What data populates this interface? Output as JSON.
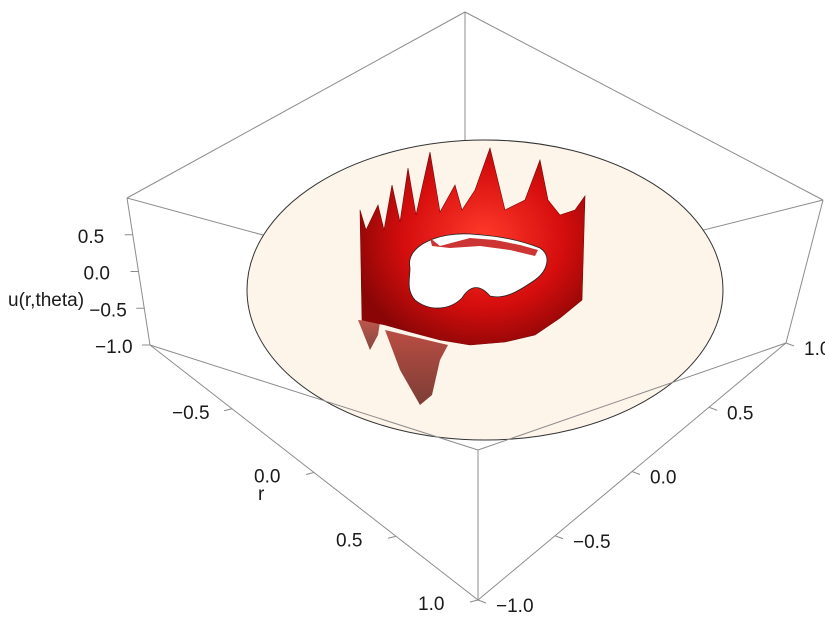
{
  "chart_data": {
    "type": "surface3d",
    "title": "",
    "axes": {
      "x": {
        "label": "r",
        "range": [
          -1.0,
          1.0
        ],
        "ticks": [
          -0.5,
          0.0,
          0.5,
          1.0
        ],
        "tick_labels": [
          "−0.5",
          "0.0",
          "0.5",
          "1.0"
        ]
      },
      "y": {
        "label": "",
        "range": [
          -1.0,
          1.0
        ],
        "ticks": [
          -1.0,
          -0.5,
          0.0,
          0.5,
          1.0
        ],
        "tick_labels": [
          "−1.0",
          "−0.5",
          "0.0",
          "0.5",
          "1.0"
        ]
      },
      "z": {
        "label": "u(r,theta)",
        "range": [
          -1.0,
          1.0
        ],
        "ticks": [
          -1.0,
          -0.5,
          0.0,
          0.5
        ],
        "tick_labels": [
          "−1.0",
          "−0.5",
          "0.0",
          "0.5"
        ]
      }
    },
    "domain": "annulus",
    "inner_radius": 0.4,
    "outer_radius": 1.0,
    "surface_color": "#e01010",
    "disc_color": "#fdf4ea",
    "box": true,
    "grid": false
  }
}
